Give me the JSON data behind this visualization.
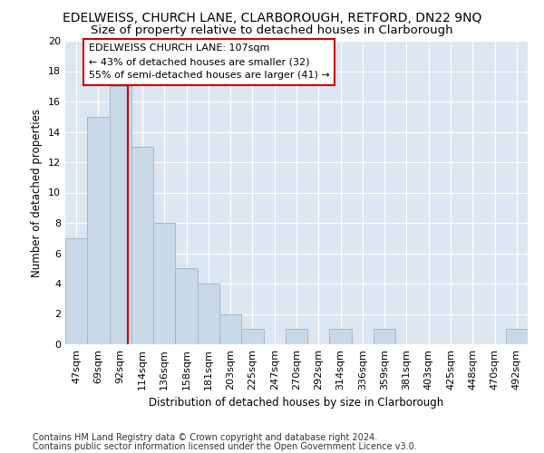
{
  "title": "EDELWEISS, CHURCH LANE, CLARBOROUGH, RETFORD, DN22 9NQ",
  "subtitle": "Size of property relative to detached houses in Clarborough",
  "xlabel": "Distribution of detached houses by size in Clarborough",
  "ylabel": "Number of detached properties",
  "categories": [
    "47sqm",
    "69sqm",
    "92sqm",
    "114sqm",
    "136sqm",
    "158sqm",
    "181sqm",
    "203sqm",
    "225sqm",
    "247sqm",
    "270sqm",
    "292sqm",
    "314sqm",
    "336sqm",
    "359sqm",
    "381sqm",
    "403sqm",
    "425sqm",
    "448sqm",
    "470sqm",
    "492sqm"
  ],
  "values": [
    7,
    15,
    17,
    13,
    8,
    5,
    4,
    2,
    1,
    0,
    1,
    0,
    1,
    0,
    1,
    0,
    0,
    0,
    0,
    0,
    1
  ],
  "bar_color": "#c9d9e8",
  "bar_edge_color": "#a0b8cc",
  "vline_x": 2.33,
  "vline_color": "#cc0000",
  "annotation_line1": "EDELWEISS CHURCH LANE: 107sqm",
  "annotation_line2": "← 43% of detached houses are smaller (32)",
  "annotation_line3": "55% of semi-detached houses are larger (41) →",
  "annotation_box_color": "#ffffff",
  "annotation_box_edge": "#cc0000",
  "ylim": [
    0,
    20
  ],
  "yticks": [
    0,
    2,
    4,
    6,
    8,
    10,
    12,
    14,
    16,
    18,
    20
  ],
  "footer1": "Contains HM Land Registry data © Crown copyright and database right 2024.",
  "footer2": "Contains public sector information licensed under the Open Government Licence v3.0.",
  "title_fontsize": 10,
  "subtitle_fontsize": 9.5,
  "axis_label_fontsize": 8.5,
  "tick_fontsize": 8,
  "annotation_fontsize": 8,
  "footer_fontsize": 7
}
